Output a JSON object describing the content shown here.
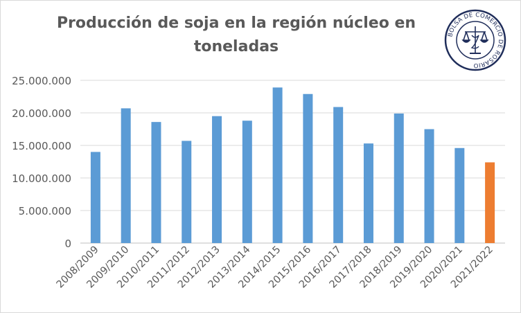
{
  "chart_data": {
    "type": "bar",
    "title": "Producción de soja en la región núcleo  en\ntoneladas",
    "xlabel": "",
    "ylabel": "",
    "categories": [
      "2008/2009",
      "2009/2010",
      "2010/2011",
      "2011/2012",
      "2012/2013",
      "2013/2014",
      "2014/2015",
      "2015/2016",
      "2016/2017",
      "2017/2018",
      "2018/2019",
      "2019/2020",
      "2020/2021",
      "2021/2022"
    ],
    "values": [
      14000000,
      20700000,
      18600000,
      15700000,
      19500000,
      18800000,
      23900000,
      22900000,
      20900000,
      15300000,
      19900000,
      17500000,
      14600000,
      12400000
    ],
    "ylim": [
      0,
      25000000
    ],
    "yticks": [
      0,
      5000000,
      10000000,
      15000000,
      20000000,
      25000000
    ],
    "ytick_labels": [
      "0",
      "5.000.000",
      "10.000.000",
      "15.000.000",
      "20.000.000",
      "25.000.000"
    ],
    "grid": true,
    "legend": "none",
    "bar_color": "#5b9bd5",
    "highlight_color": "#ed7d31",
    "highlight_index": 13
  },
  "logo": {
    "text": "BOLSA DE COMERCIO DE ROSARIO",
    "color": "#1f2d5a"
  }
}
